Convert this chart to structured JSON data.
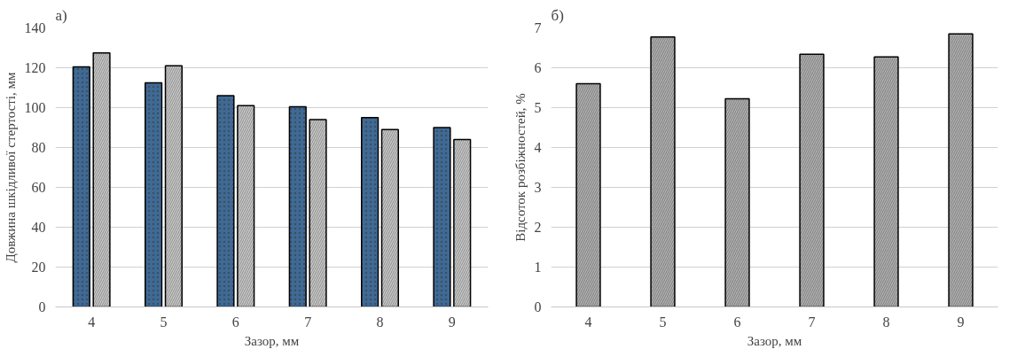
{
  "chart_data": [
    {
      "type": "bar",
      "title": "а)",
      "xlabel": "Зазор, мм",
      "ylabel": "Довжина шкідливої стертості, мм",
      "categories": [
        "4",
        "5",
        "6",
        "7",
        "8",
        "9"
      ],
      "series": [
        {
          "color": "#3f6a95",
          "values": [
            120.5,
            112.5,
            106,
            100.5,
            95,
            90
          ]
        },
        {
          "color": "#c8c8c8",
          "values": [
            127.5,
            121,
            101,
            94,
            89,
            84
          ]
        }
      ],
      "ylim": [
        0,
        140
      ],
      "yticks": [
        0,
        20,
        40,
        60,
        80,
        100,
        120,
        140
      ],
      "grid": "y"
    },
    {
      "type": "bar",
      "title": "б)",
      "xlabel": "Зазор, мм",
      "ylabel": "Відсоток розбіжностей, %",
      "categories": [
        "4",
        "5",
        "6",
        "7",
        "8",
        "9"
      ],
      "color": "#b0b0b0",
      "values": [
        5.6,
        6.77,
        5.22,
        6.34,
        6.27,
        6.85
      ],
      "ylim": [
        0,
        7
      ],
      "yticks": [
        0,
        1,
        2,
        3,
        4,
        5,
        6,
        7
      ],
      "grid": "y"
    }
  ]
}
